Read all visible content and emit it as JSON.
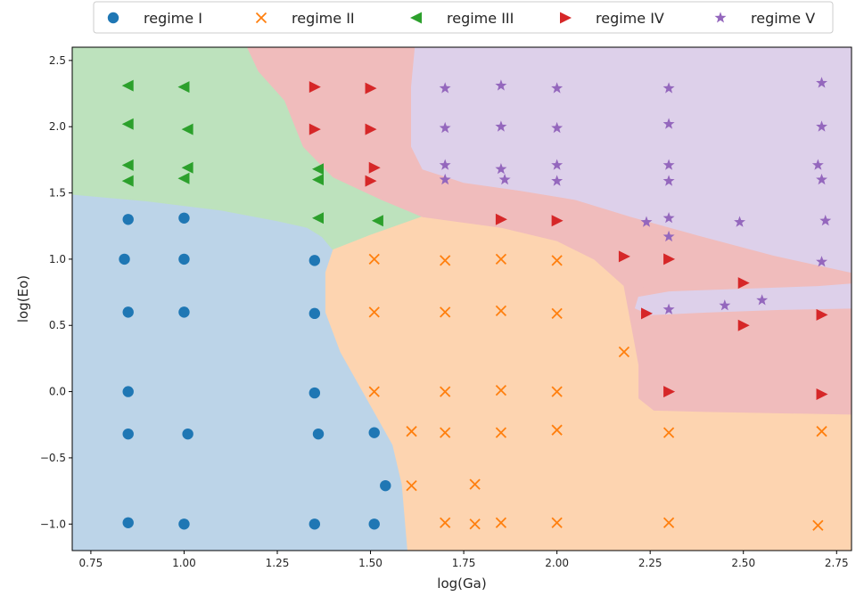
{
  "chart_data": {
    "type": "scatter",
    "title": "",
    "xlabel": "log(Ga)",
    "ylabel": "log(Eo)",
    "xlim": [
      0.7,
      2.79
    ],
    "ylim": [
      -1.2,
      2.6
    ],
    "xticks": [
      0.75,
      1.0,
      1.25,
      1.5,
      1.75,
      2.0,
      2.25,
      2.5,
      2.75
    ],
    "xtick_labels": [
      "0.75",
      "1.00",
      "1.25",
      "1.50",
      "1.75",
      "2.00",
      "2.25",
      "2.50",
      "2.75"
    ],
    "yticks": [
      -1.0,
      -0.5,
      0.0,
      0.5,
      1.0,
      1.5,
      2.0,
      2.5
    ],
    "ytick_labels": [
      "−1.0",
      "−0.5",
      "0.0",
      "0.5",
      "1.0",
      "1.5",
      "2.0",
      "2.5"
    ],
    "grid": false,
    "legend": "top, outside, single row",
    "series": [
      {
        "name": "regime I",
        "marker": "circle",
        "color": "#1f77b4",
        "points": [
          [
            0.85,
            1.3
          ],
          [
            1.0,
            1.31
          ],
          [
            0.84,
            1.0
          ],
          [
            1.0,
            1.0
          ],
          [
            1.35,
            0.99
          ],
          [
            0.85,
            0.6
          ],
          [
            1.0,
            0.6
          ],
          [
            1.35,
            0.59
          ],
          [
            0.85,
            0.0
          ],
          [
            1.35,
            -0.01
          ],
          [
            0.85,
            -0.32
          ],
          [
            1.01,
            -0.32
          ],
          [
            1.36,
            -0.32
          ],
          [
            1.51,
            -0.31
          ],
          [
            1.54,
            -0.71
          ],
          [
            0.85,
            -0.99
          ],
          [
            1.0,
            -1.0
          ],
          [
            1.35,
            -1.0
          ],
          [
            1.51,
            -1.0
          ]
        ]
      },
      {
        "name": "regime II",
        "marker": "x",
        "color": "#ff7f0e",
        "points": [
          [
            1.51,
            1.0
          ],
          [
            1.7,
            0.99
          ],
          [
            1.85,
            1.0
          ],
          [
            2.0,
            0.99
          ],
          [
            1.51,
            0.6
          ],
          [
            1.7,
            0.6
          ],
          [
            1.85,
            0.61
          ],
          [
            2.0,
            0.59
          ],
          [
            2.18,
            0.3
          ],
          [
            1.51,
            0.0
          ],
          [
            1.7,
            0.0
          ],
          [
            1.85,
            0.01
          ],
          [
            2.0,
            0.0
          ],
          [
            1.61,
            -0.3
          ],
          [
            1.7,
            -0.31
          ],
          [
            1.85,
            -0.31
          ],
          [
            2.0,
            -0.29
          ],
          [
            2.3,
            -0.31
          ],
          [
            2.71,
            -0.3
          ],
          [
            1.61,
            -0.71
          ],
          [
            1.78,
            -0.7
          ],
          [
            1.7,
            -0.99
          ],
          [
            1.78,
            -1.0
          ],
          [
            1.85,
            -0.99
          ],
          [
            2.0,
            -0.99
          ],
          [
            2.3,
            -0.99
          ],
          [
            2.7,
            -1.01
          ]
        ]
      },
      {
        "name": "regime III",
        "marker": "triangle-left",
        "color": "#2ca02c",
        "points": [
          [
            0.85,
            2.31
          ],
          [
            1.0,
            2.3
          ],
          [
            0.85,
            2.02
          ],
          [
            1.01,
            1.98
          ],
          [
            0.85,
            1.71
          ],
          [
            1.01,
            1.69
          ],
          [
            1.36,
            1.68
          ],
          [
            0.85,
            1.59
          ],
          [
            1.0,
            1.61
          ],
          [
            1.36,
            1.6
          ],
          [
            1.36,
            1.31
          ],
          [
            1.52,
            1.29
          ]
        ]
      },
      {
        "name": "regime IV",
        "marker": "triangle-right",
        "color": "#d62728",
        "points": [
          [
            1.35,
            2.3
          ],
          [
            1.5,
            2.29
          ],
          [
            1.35,
            1.98
          ],
          [
            1.5,
            1.98
          ],
          [
            1.51,
            1.69
          ],
          [
            1.5,
            1.59
          ],
          [
            1.85,
            1.3
          ],
          [
            2.0,
            1.29
          ],
          [
            2.18,
            1.02
          ],
          [
            2.3,
            1.0
          ],
          [
            2.5,
            0.82
          ],
          [
            2.24,
            0.59
          ],
          [
            2.5,
            0.5
          ],
          [
            2.71,
            0.58
          ],
          [
            2.3,
            0.0
          ],
          [
            2.71,
            -0.02
          ]
        ]
      },
      {
        "name": "regime V",
        "marker": "star",
        "color": "#9467bd",
        "points": [
          [
            1.7,
            2.29
          ],
          [
            1.85,
            2.31
          ],
          [
            2.0,
            2.29
          ],
          [
            2.3,
            2.29
          ],
          [
            2.71,
            2.33
          ],
          [
            1.7,
            1.99
          ],
          [
            1.85,
            2.0
          ],
          [
            2.0,
            1.99
          ],
          [
            2.3,
            2.02
          ],
          [
            2.71,
            2.0
          ],
          [
            1.7,
            1.71
          ],
          [
            1.85,
            1.68
          ],
          [
            2.0,
            1.71
          ],
          [
            2.3,
            1.71
          ],
          [
            2.7,
            1.71
          ],
          [
            1.7,
            1.6
          ],
          [
            1.86,
            1.6
          ],
          [
            2.0,
            1.59
          ],
          [
            2.3,
            1.59
          ],
          [
            2.71,
            1.6
          ],
          [
            2.24,
            1.28
          ],
          [
            2.3,
            1.31
          ],
          [
            2.49,
            1.28
          ],
          [
            2.72,
            1.29
          ],
          [
            2.3,
            1.17
          ],
          [
            2.71,
            0.98
          ],
          [
            2.55,
            0.69
          ],
          [
            2.45,
            0.65
          ],
          [
            2.3,
            0.62
          ]
        ]
      }
    ],
    "decision_regions": [
      {
        "regime": "regime I",
        "fill": "#bcd4e8",
        "polygon": [
          [
            0.7,
            1.49
          ],
          [
            0.9,
            1.44
          ],
          [
            1.1,
            1.37
          ],
          [
            1.25,
            1.29
          ],
          [
            1.33,
            1.24
          ],
          [
            1.37,
            1.17
          ],
          [
            1.4,
            1.07
          ],
          [
            1.38,
            0.9
          ],
          [
            1.38,
            0.6
          ],
          [
            1.42,
            0.3
          ],
          [
            1.5,
            -0.1
          ],
          [
            1.56,
            -0.4
          ],
          [
            1.585,
            -0.7
          ],
          [
            1.6,
            -1.2
          ],
          [
            0.7,
            -1.2
          ]
        ]
      },
      {
        "regime": "regime III",
        "fill": "#bde2bd",
        "polygon": [
          [
            0.7,
            1.49
          ],
          [
            0.9,
            1.44
          ],
          [
            1.1,
            1.37
          ],
          [
            1.25,
            1.29
          ],
          [
            1.33,
            1.24
          ],
          [
            1.37,
            1.17
          ],
          [
            1.4,
            1.07
          ],
          [
            1.5,
            1.18
          ],
          [
            1.64,
            1.32
          ],
          [
            1.53,
            1.45
          ],
          [
            1.4,
            1.62
          ],
          [
            1.32,
            1.85
          ],
          [
            1.27,
            2.2
          ],
          [
            1.2,
            2.42
          ],
          [
            1.17,
            2.6
          ],
          [
            0.7,
            2.6
          ]
        ]
      },
      {
        "regime": "regime II",
        "fill": "#fdd4b0",
        "polygon": [
          [
            1.4,
            1.07
          ],
          [
            1.5,
            1.18
          ],
          [
            1.64,
            1.32
          ],
          [
            1.85,
            1.24
          ],
          [
            2.0,
            1.14
          ],
          [
            2.1,
            1.0
          ],
          [
            2.18,
            0.8
          ],
          [
            2.2,
            0.5
          ],
          [
            2.22,
            0.2
          ],
          [
            2.22,
            -0.05
          ],
          [
            2.26,
            -0.14
          ],
          [
            2.4,
            -0.15
          ],
          [
            2.79,
            -0.17
          ],
          [
            2.79,
            -1.2
          ],
          [
            1.6,
            -1.2
          ],
          [
            1.585,
            -0.7
          ],
          [
            1.56,
            -0.4
          ],
          [
            1.5,
            -0.1
          ],
          [
            1.42,
            0.3
          ],
          [
            1.38,
            0.6
          ],
          [
            1.38,
            0.9
          ]
        ]
      },
      {
        "regime": "regime IV",
        "fill": "#f0bcbc",
        "polygon": [
          [
            1.17,
            2.6
          ],
          [
            1.2,
            2.42
          ],
          [
            1.27,
            2.2
          ],
          [
            1.32,
            1.85
          ],
          [
            1.4,
            1.62
          ],
          [
            1.53,
            1.45
          ],
          [
            1.64,
            1.32
          ],
          [
            1.85,
            1.24
          ],
          [
            2.0,
            1.14
          ],
          [
            2.1,
            1.0
          ],
          [
            2.18,
            0.8
          ],
          [
            2.2,
            0.5
          ],
          [
            2.22,
            0.2
          ],
          [
            2.22,
            -0.05
          ],
          [
            2.26,
            -0.14
          ],
          [
            2.4,
            -0.15
          ],
          [
            2.79,
            -0.17
          ],
          [
            2.79,
            2.6
          ]
        ]
      },
      {
        "regime": "regime V",
        "fill": "#ddd0ea",
        "polygon": [
          [
            1.62,
            2.6
          ],
          [
            1.61,
            2.3
          ],
          [
            1.61,
            1.85
          ],
          [
            1.64,
            1.68
          ],
          [
            1.75,
            1.58
          ],
          [
            1.9,
            1.52
          ],
          [
            2.05,
            1.45
          ],
          [
            2.2,
            1.32
          ],
          [
            2.38,
            1.18
          ],
          [
            2.58,
            1.03
          ],
          [
            2.79,
            0.9
          ],
          [
            2.79,
            2.6
          ]
        ]
      },
      {
        "regime": "regime V",
        "fill": "#ddd0ea",
        "polygon": [
          [
            2.22,
            0.72
          ],
          [
            2.3,
            0.76
          ],
          [
            2.5,
            0.78
          ],
          [
            2.7,
            0.8
          ],
          [
            2.79,
            0.82
          ],
          [
            2.79,
            0.63
          ],
          [
            2.6,
            0.62
          ],
          [
            2.4,
            0.6
          ],
          [
            2.25,
            0.58
          ],
          [
            2.21,
            0.63
          ]
        ]
      },
      {
        "regime": "regime IV",
        "fill": "#f0bcbc",
        "polygon": [
          [
            2.22,
            0.72
          ],
          [
            2.3,
            0.76
          ],
          [
            2.5,
            0.78
          ],
          [
            2.7,
            0.8
          ],
          [
            2.79,
            0.82
          ],
          [
            2.79,
            0.86
          ],
          [
            2.5,
            0.84
          ],
          [
            2.3,
            0.83
          ],
          [
            2.22,
            0.78
          ]
        ]
      }
    ]
  }
}
